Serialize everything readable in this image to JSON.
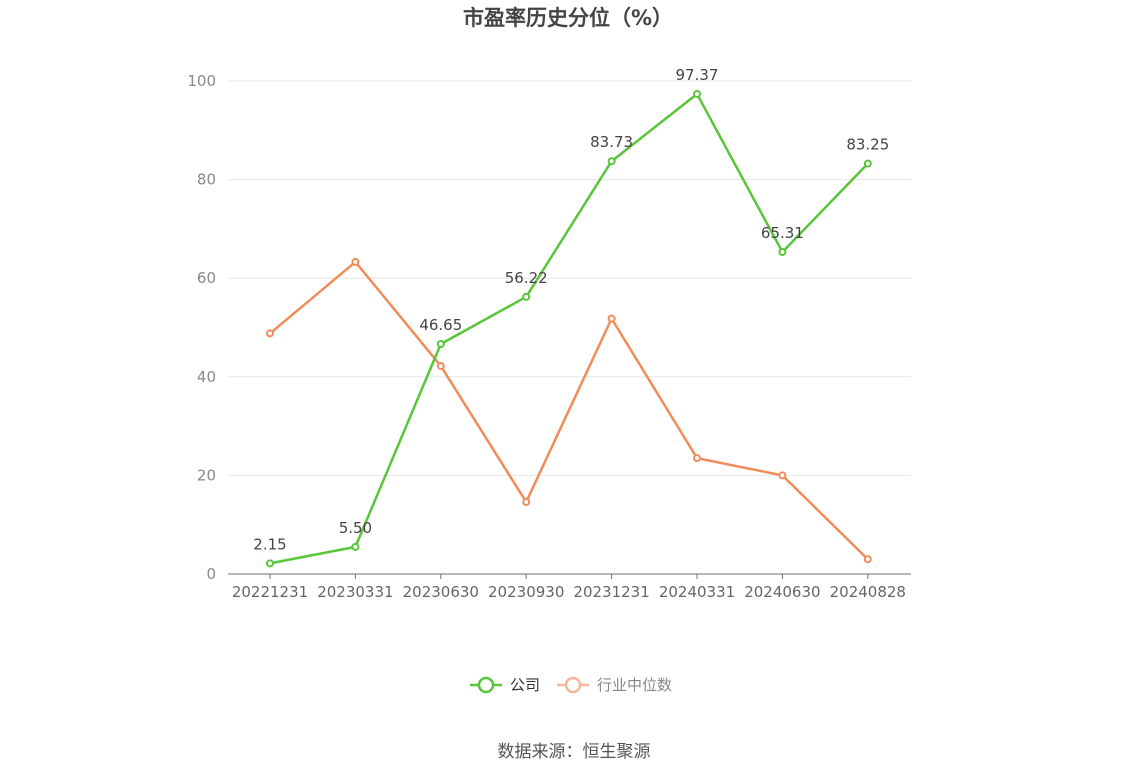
{
  "chart_data": {
    "type": "line",
    "title": "市盈率历史分位（%）",
    "categories": [
      "20221231",
      "20230331",
      "20230630",
      "20230930",
      "20231231",
      "20240331",
      "20240630",
      "20240828"
    ],
    "series": [
      {
        "name": "公司",
        "color": "#5ac53a",
        "values": [
          2.15,
          5.5,
          46.65,
          56.22,
          83.73,
          97.37,
          65.31,
          83.25
        ],
        "labels": [
          "2.15",
          "5.50",
          "46.65",
          "56.22",
          "83.73",
          "97.37",
          "65.31",
          "83.25"
        ]
      },
      {
        "name": "行业中位数",
        "color": "#f08c5a",
        "legend_color": "#f7b79a",
        "values": [
          48.8,
          63.3,
          42.2,
          14.6,
          51.8,
          23.5,
          20.0,
          3.0
        ]
      }
    ],
    "ylim": [
      0,
      100
    ],
    "yticks": [
      "0",
      "20",
      "40",
      "60",
      "80",
      "100"
    ],
    "grid": true,
    "legend_position": "bottom"
  },
  "source": "数据来源：恒生聚源"
}
